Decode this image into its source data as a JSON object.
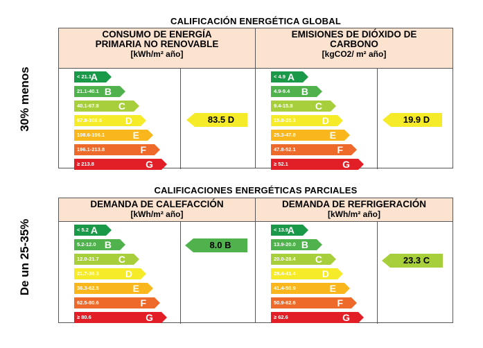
{
  "side_labels": {
    "top": "30% menos",
    "bottom": "De un 25-35%"
  },
  "sections": {
    "global": {
      "title": "CALIFICACIÓN ENERGÉTICA GLOBAL",
      "left": {
        "title_line1": "CONSUMO DE ENERGÍA",
        "title_line2": "PRIMARIA NO RENOVABLE",
        "unit": "[kWh/m² año]",
        "ranges": [
          "< 21.1",
          "21.1-40.1",
          "40.1-67.8",
          "67.8-108.6",
          "108.6-196.1",
          "196.1-213.8",
          "≥ 213.8"
        ],
        "rating": "83.5 D"
      },
      "right": {
        "title_line1": "EMISIONES DE DIÓXIDO DE",
        "title_line2": "CARBONO",
        "unit": "[kgCO2/ m² año]",
        "ranges": [
          "< 4.9",
          "4.9-9.4",
          "9.4-15.8",
          "15.8-25.3",
          "25.3-47.8",
          "47.8-52.1",
          "≥ 52.1"
        ],
        "rating": "19.9 D"
      }
    },
    "partial": {
      "title": "CALIFICACIONES ENERGÉTICAS PARCIALES",
      "left": {
        "title_line1": "DEMANDA DE CALEFACCIÓN",
        "unit": "[kWh/m² año]",
        "ranges": [
          "< 5.2",
          "5.2-12.0",
          "12.0-21.7",
          "21.7-36.3",
          "36.3-62.5",
          "62.5-80.6",
          "≥ 80.6"
        ],
        "rating": "8.0 B"
      },
      "right": {
        "title_line1": "DEMANDA DE REFRIGERACIÓN",
        "unit": "[kWh/m² año]",
        "ranges": [
          "< 13.9",
          "13.9-20.0",
          "20.0-28.4",
          "28.4-41.4",
          "41.4-50.9",
          "50.9-62.6",
          "≥ 62.6"
        ],
        "rating": "23.3 C"
      }
    }
  },
  "letters": [
    "A",
    "B",
    "C",
    "D",
    "E",
    "F",
    "G"
  ],
  "colors": {
    "A": "#1a9a48",
    "B": "#4fb24c",
    "C": "#a7cf3c",
    "D": "#f6eb28",
    "E": "#f9b71d",
    "F": "#ee6a2a",
    "G": "#e21e27",
    "header_bg": "#fbe3d0"
  }
}
